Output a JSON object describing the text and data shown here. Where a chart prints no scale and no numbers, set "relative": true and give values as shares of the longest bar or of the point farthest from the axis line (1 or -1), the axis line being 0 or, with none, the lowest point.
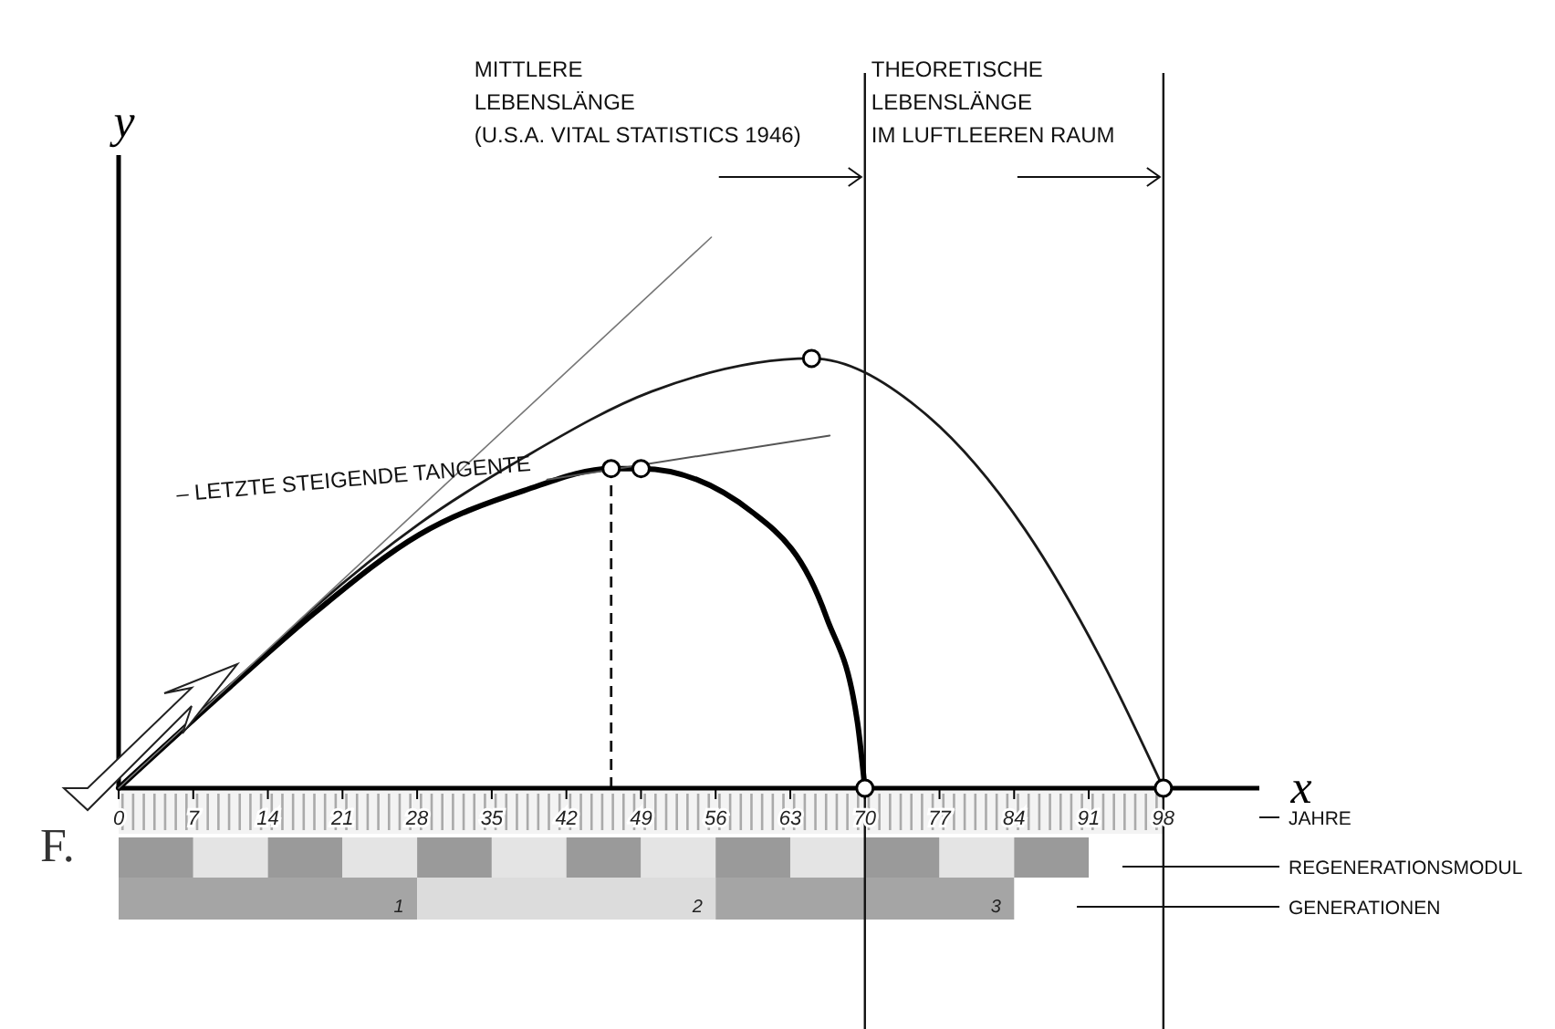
{
  "chart_data": {
    "type": "line",
    "relative": true,
    "xlabel": "x",
    "ylabel": "y",
    "xlim": [
      0,
      107
    ],
    "xticks": [
      0,
      7,
      14,
      21,
      28,
      35,
      42,
      49,
      56,
      63,
      70,
      77,
      84,
      91,
      98
    ],
    "series": [
      {
        "color": "#1a1a1a",
        "x": [
          0,
          10.8,
          18.5,
          28.2,
          38,
          50,
          65,
          75,
          85,
          92,
          98
        ],
        "values": [
          0,
          0.19,
          0.33,
          0.48,
          0.6,
          0.72,
          0.78,
          0.69,
          0.47,
          0.24,
          0
        ]
      },
      {
        "color": "#000000",
        "x": [
          0,
          10.8,
          18.5,
          28.2,
          38,
          46.2,
          49,
          59.5,
          66.4,
          69.3,
          70
        ],
        "values": [
          0,
          0.19,
          0.32,
          0.46,
          0.54,
          0.58,
          0.58,
          0.5,
          0.31,
          0.12,
          0
        ]
      },
      {
        "color": "#777777",
        "x": [
          0,
          55.6
        ],
        "values": [
          0,
          1
        ]
      },
      {
        "color": "#555555",
        "x": [
          40.2,
          66.7
        ],
        "values": [
          0.56,
          0.64
        ]
      },
      {
        "type": "scatter",
        "marker": "circle",
        "color": "#000000",
        "x": [
          46.2,
          49,
          65,
          70,
          98
        ],
        "values": [
          0.58,
          0.58,
          0.78,
          0,
          0
        ]
      }
    ],
    "ref_lines": [
      {
        "axis": "x",
        "value": 46.2,
        "line_style": "dashed"
      },
      {
        "axis": "x",
        "value": 70,
        "label": "MITTLERE\nLEBENSLÄNGE\n(U.S.A.  VITAL  STATISTICS  1946)"
      },
      {
        "axis": "x",
        "value": 98,
        "label": "THEORETISCHE\nLEBENSLÄNGE\nIM LUFTLEEREN RAUM"
      }
    ],
    "annotations": [
      {
        "text": "– LETZTE STEIGENDE TANGENTE",
        "x": 38,
        "y": 0.56
      },
      "1",
      "2",
      "3",
      "JAHRE",
      "REGENERATIONSMODUL",
      "GENERATIONEN",
      "F."
    ]
  }
}
